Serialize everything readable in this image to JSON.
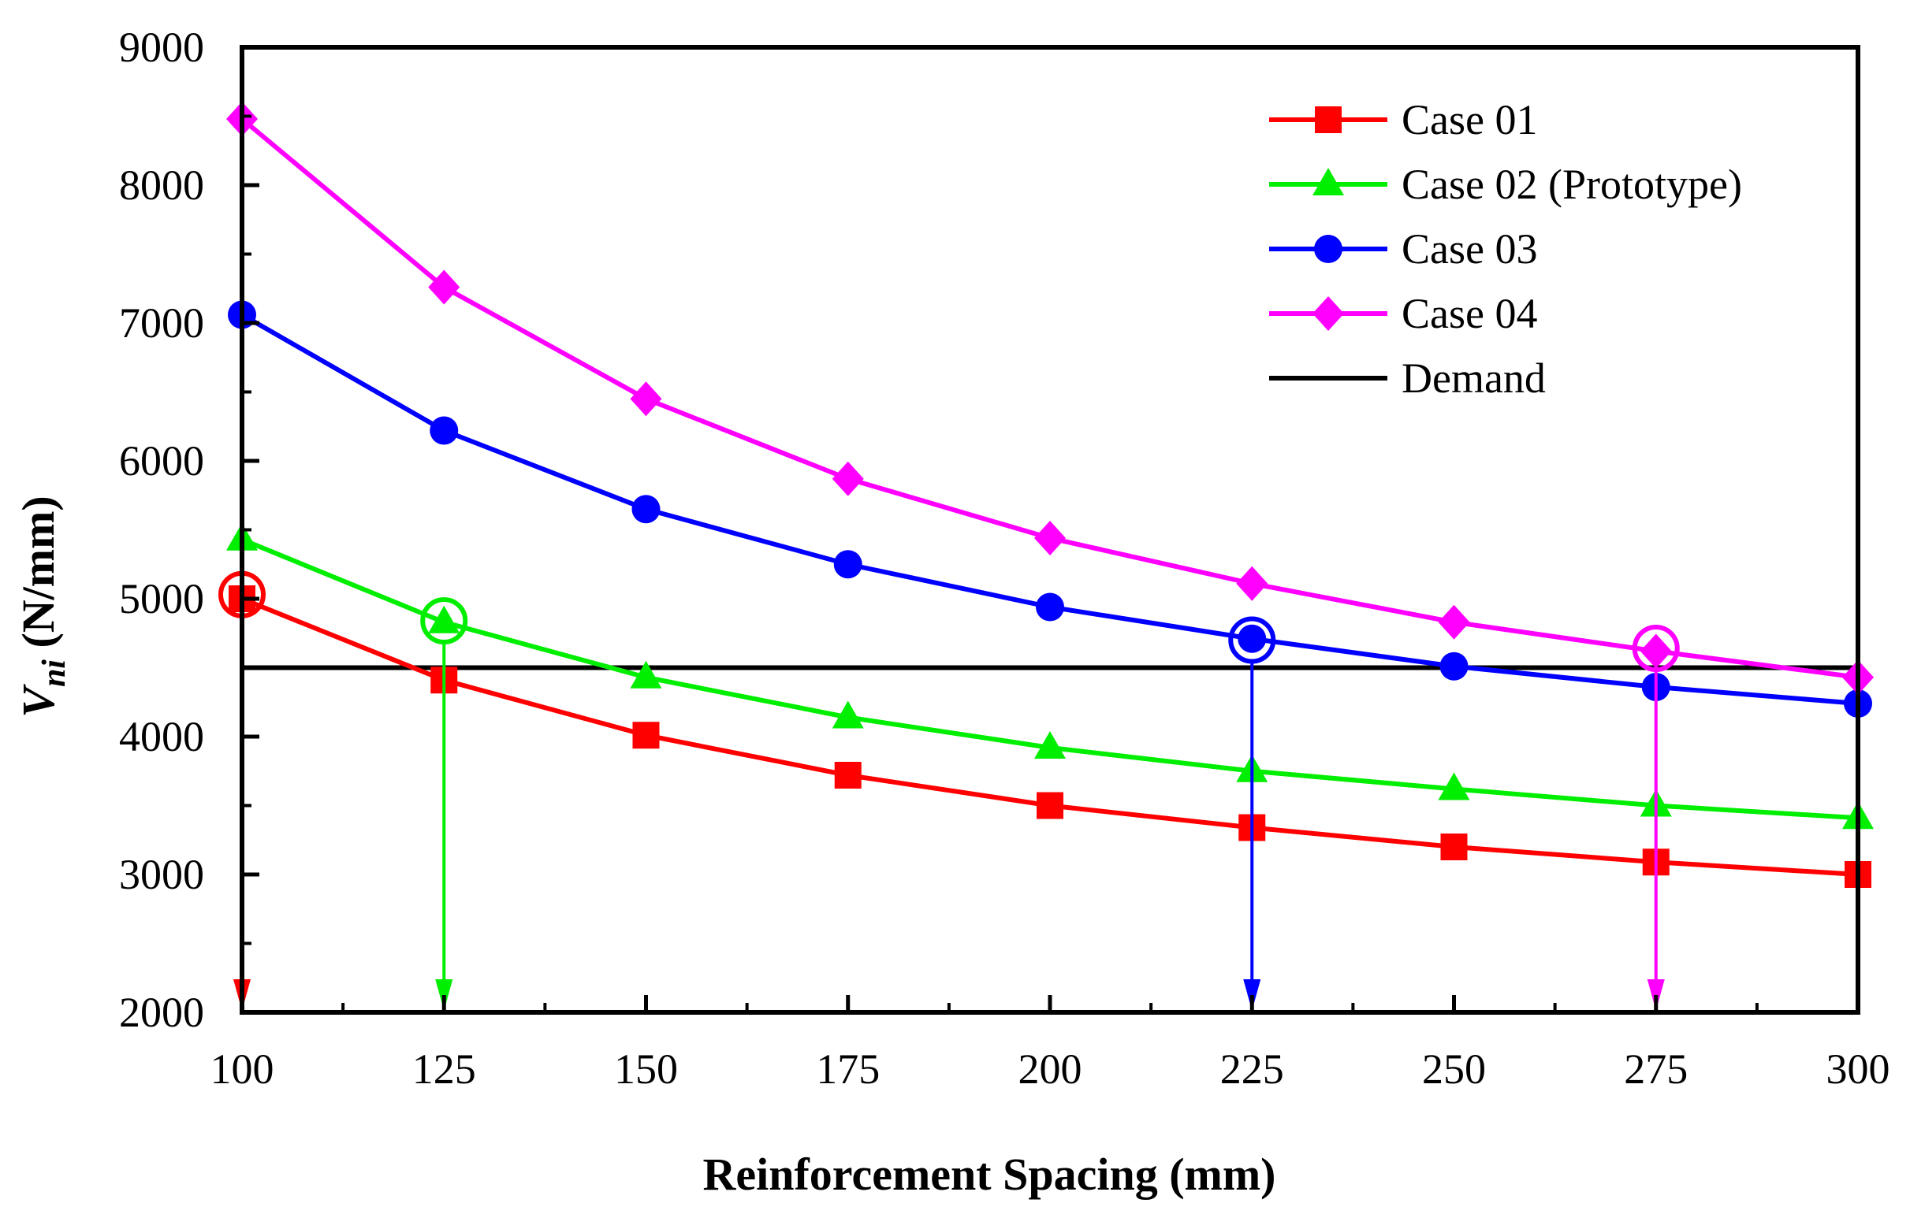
{
  "chart_data": {
    "type": "line",
    "title": "",
    "xlabel": "Reinforcement Spacing (mm)",
    "ylabel_main": "V",
    "ylabel_sub": "ni",
    "ylabel_unit": " (N/mm)",
    "xlim": [
      100,
      300
    ],
    "ylim": [
      2000,
      9000
    ],
    "x_ticks": [
      "100",
      "125",
      "150",
      "175",
      "200",
      "225",
      "250",
      "275",
      "300"
    ],
    "y_ticks": [
      "2000",
      "3000",
      "4000",
      "5000",
      "6000",
      "7000",
      "8000",
      "9000"
    ],
    "x": [
      100,
      125,
      150,
      175,
      200,
      225,
      250,
      275,
      300
    ],
    "grid": false,
    "legend_position": "top-right",
    "series": [
      {
        "name": "Case 01",
        "color": "#ff0000",
        "marker": "square",
        "values": [
          5000,
          4410,
          4010,
          3720,
          3500,
          3340,
          3200,
          3090,
          3000
        ],
        "highlight": {
          "x": 100,
          "y": 5030
        }
      },
      {
        "name": "Case 02 (Prototype)",
        "color": "#00ee00",
        "marker": "triangle",
        "values": [
          5430,
          4830,
          4430,
          4140,
          3920,
          3750,
          3620,
          3500,
          3410
        ],
        "highlight": {
          "x": 125,
          "y": 4840
        }
      },
      {
        "name": "Case 03",
        "color": "#0000ff",
        "marker": "circle",
        "values": [
          7060,
          6220,
          5650,
          5250,
          4940,
          4710,
          4510,
          4360,
          4240
        ],
        "highlight": {
          "x": 225,
          "y": 4700
        }
      },
      {
        "name": "Case 04",
        "color": "#ff00ff",
        "marker": "diamond",
        "values": [
          8480,
          7260,
          6450,
          5870,
          5440,
          5110,
          4830,
          4620,
          4430
        ],
        "highlight": {
          "x": 275,
          "y": 4640
        }
      }
    ],
    "demand": {
      "name": "Demand",
      "color": "#000000",
      "value": 4500
    }
  }
}
